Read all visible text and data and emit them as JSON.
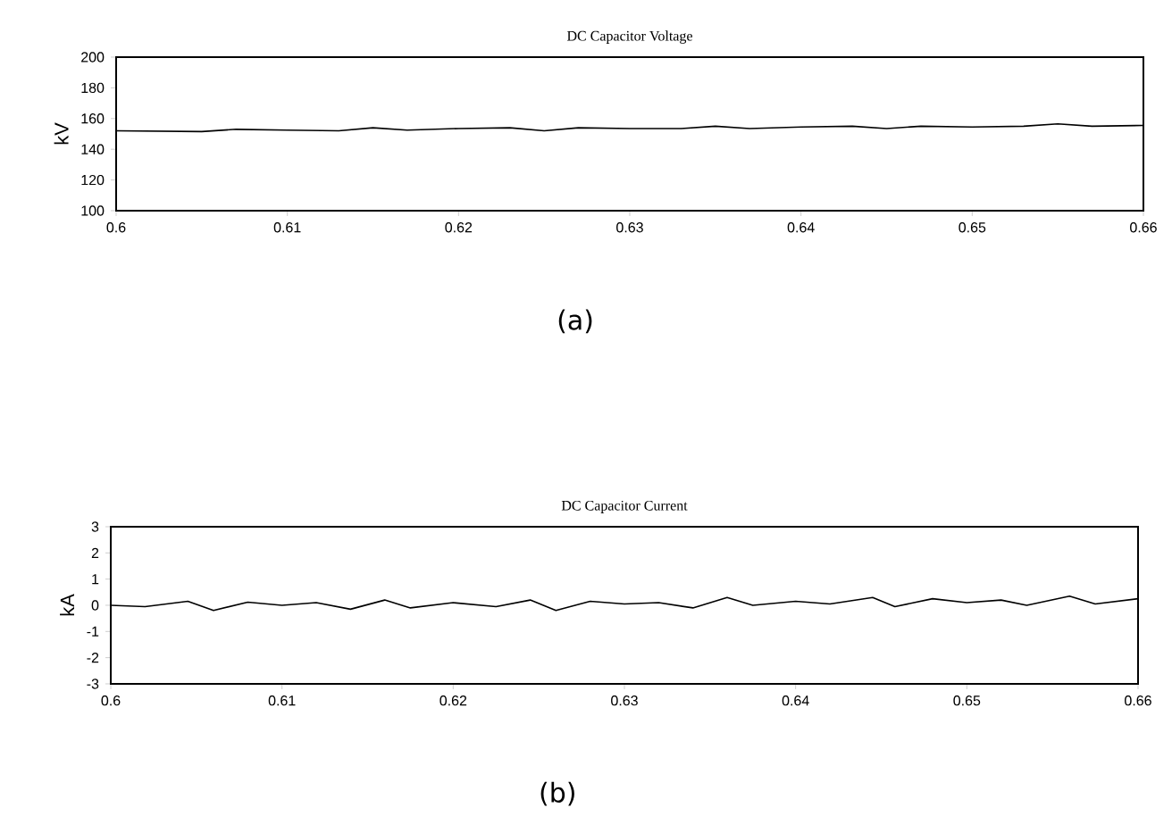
{
  "chart_data": [
    {
      "type": "line",
      "title": "DC Capacitor Voltage",
      "ylabel": "kV",
      "annotations": [
        "(a)"
      ],
      "xlim": [
        0.6,
        0.66
      ],
      "ylim": [
        100,
        200
      ],
      "xticks": [
        0.6,
        0.61,
        0.62,
        0.63,
        0.64,
        0.65,
        0.66
      ],
      "yticks": [
        100,
        120,
        140,
        160,
        180,
        200
      ],
      "series": [
        {
          "color": "#000000",
          "x": [
            0.6,
            0.605,
            0.607,
            0.61,
            0.613,
            0.615,
            0.617,
            0.62,
            0.623,
            0.625,
            0.627,
            0.63,
            0.633,
            0.635,
            0.637,
            0.64,
            0.643,
            0.645,
            0.647,
            0.65,
            0.653,
            0.655,
            0.657,
            0.66
          ],
          "values": [
            152,
            151.5,
            153,
            152.5,
            152,
            154,
            152.5,
            153.5,
            154,
            152,
            154,
            153.5,
            153.5,
            155,
            153.5,
            154.5,
            155,
            153.5,
            155,
            154.5,
            155,
            156.5,
            155,
            155.5
          ]
        }
      ]
    },
    {
      "type": "line",
      "title": "DC Capacitor Current",
      "ylabel": "kA",
      "annotations": [
        "(b)"
      ],
      "xlim": [
        0.6,
        0.66
      ],
      "ylim": [
        -3,
        3
      ],
      "xticks": [
        0.6,
        0.61,
        0.62,
        0.63,
        0.64,
        0.65,
        0.66
      ],
      "yticks": [
        -3,
        -2,
        -1,
        0,
        1,
        2,
        3
      ],
      "series": [
        {
          "color": "#000000",
          "x": [
            0.6,
            0.602,
            0.6045,
            0.606,
            0.608,
            0.61,
            0.612,
            0.614,
            0.616,
            0.6175,
            0.62,
            0.6225,
            0.6245,
            0.626,
            0.628,
            0.63,
            0.632,
            0.634,
            0.636,
            0.6375,
            0.64,
            0.642,
            0.6445,
            0.6458,
            0.648,
            0.65,
            0.652,
            0.6535,
            0.656,
            0.6575,
            0.66
          ],
          "values": [
            0,
            -0.05,
            0.15,
            -0.2,
            0.12,
            0,
            0.1,
            -0.15,
            0.2,
            -0.1,
            0.1,
            -0.05,
            0.2,
            -0.2,
            0.15,
            0.05,
            0.1,
            -0.1,
            0.3,
            0,
            0.15,
            0.05,
            0.3,
            -0.05,
            0.25,
            0.1,
            0.2,
            0,
            0.35,
            0.05,
            0.25
          ]
        }
      ]
    }
  ]
}
